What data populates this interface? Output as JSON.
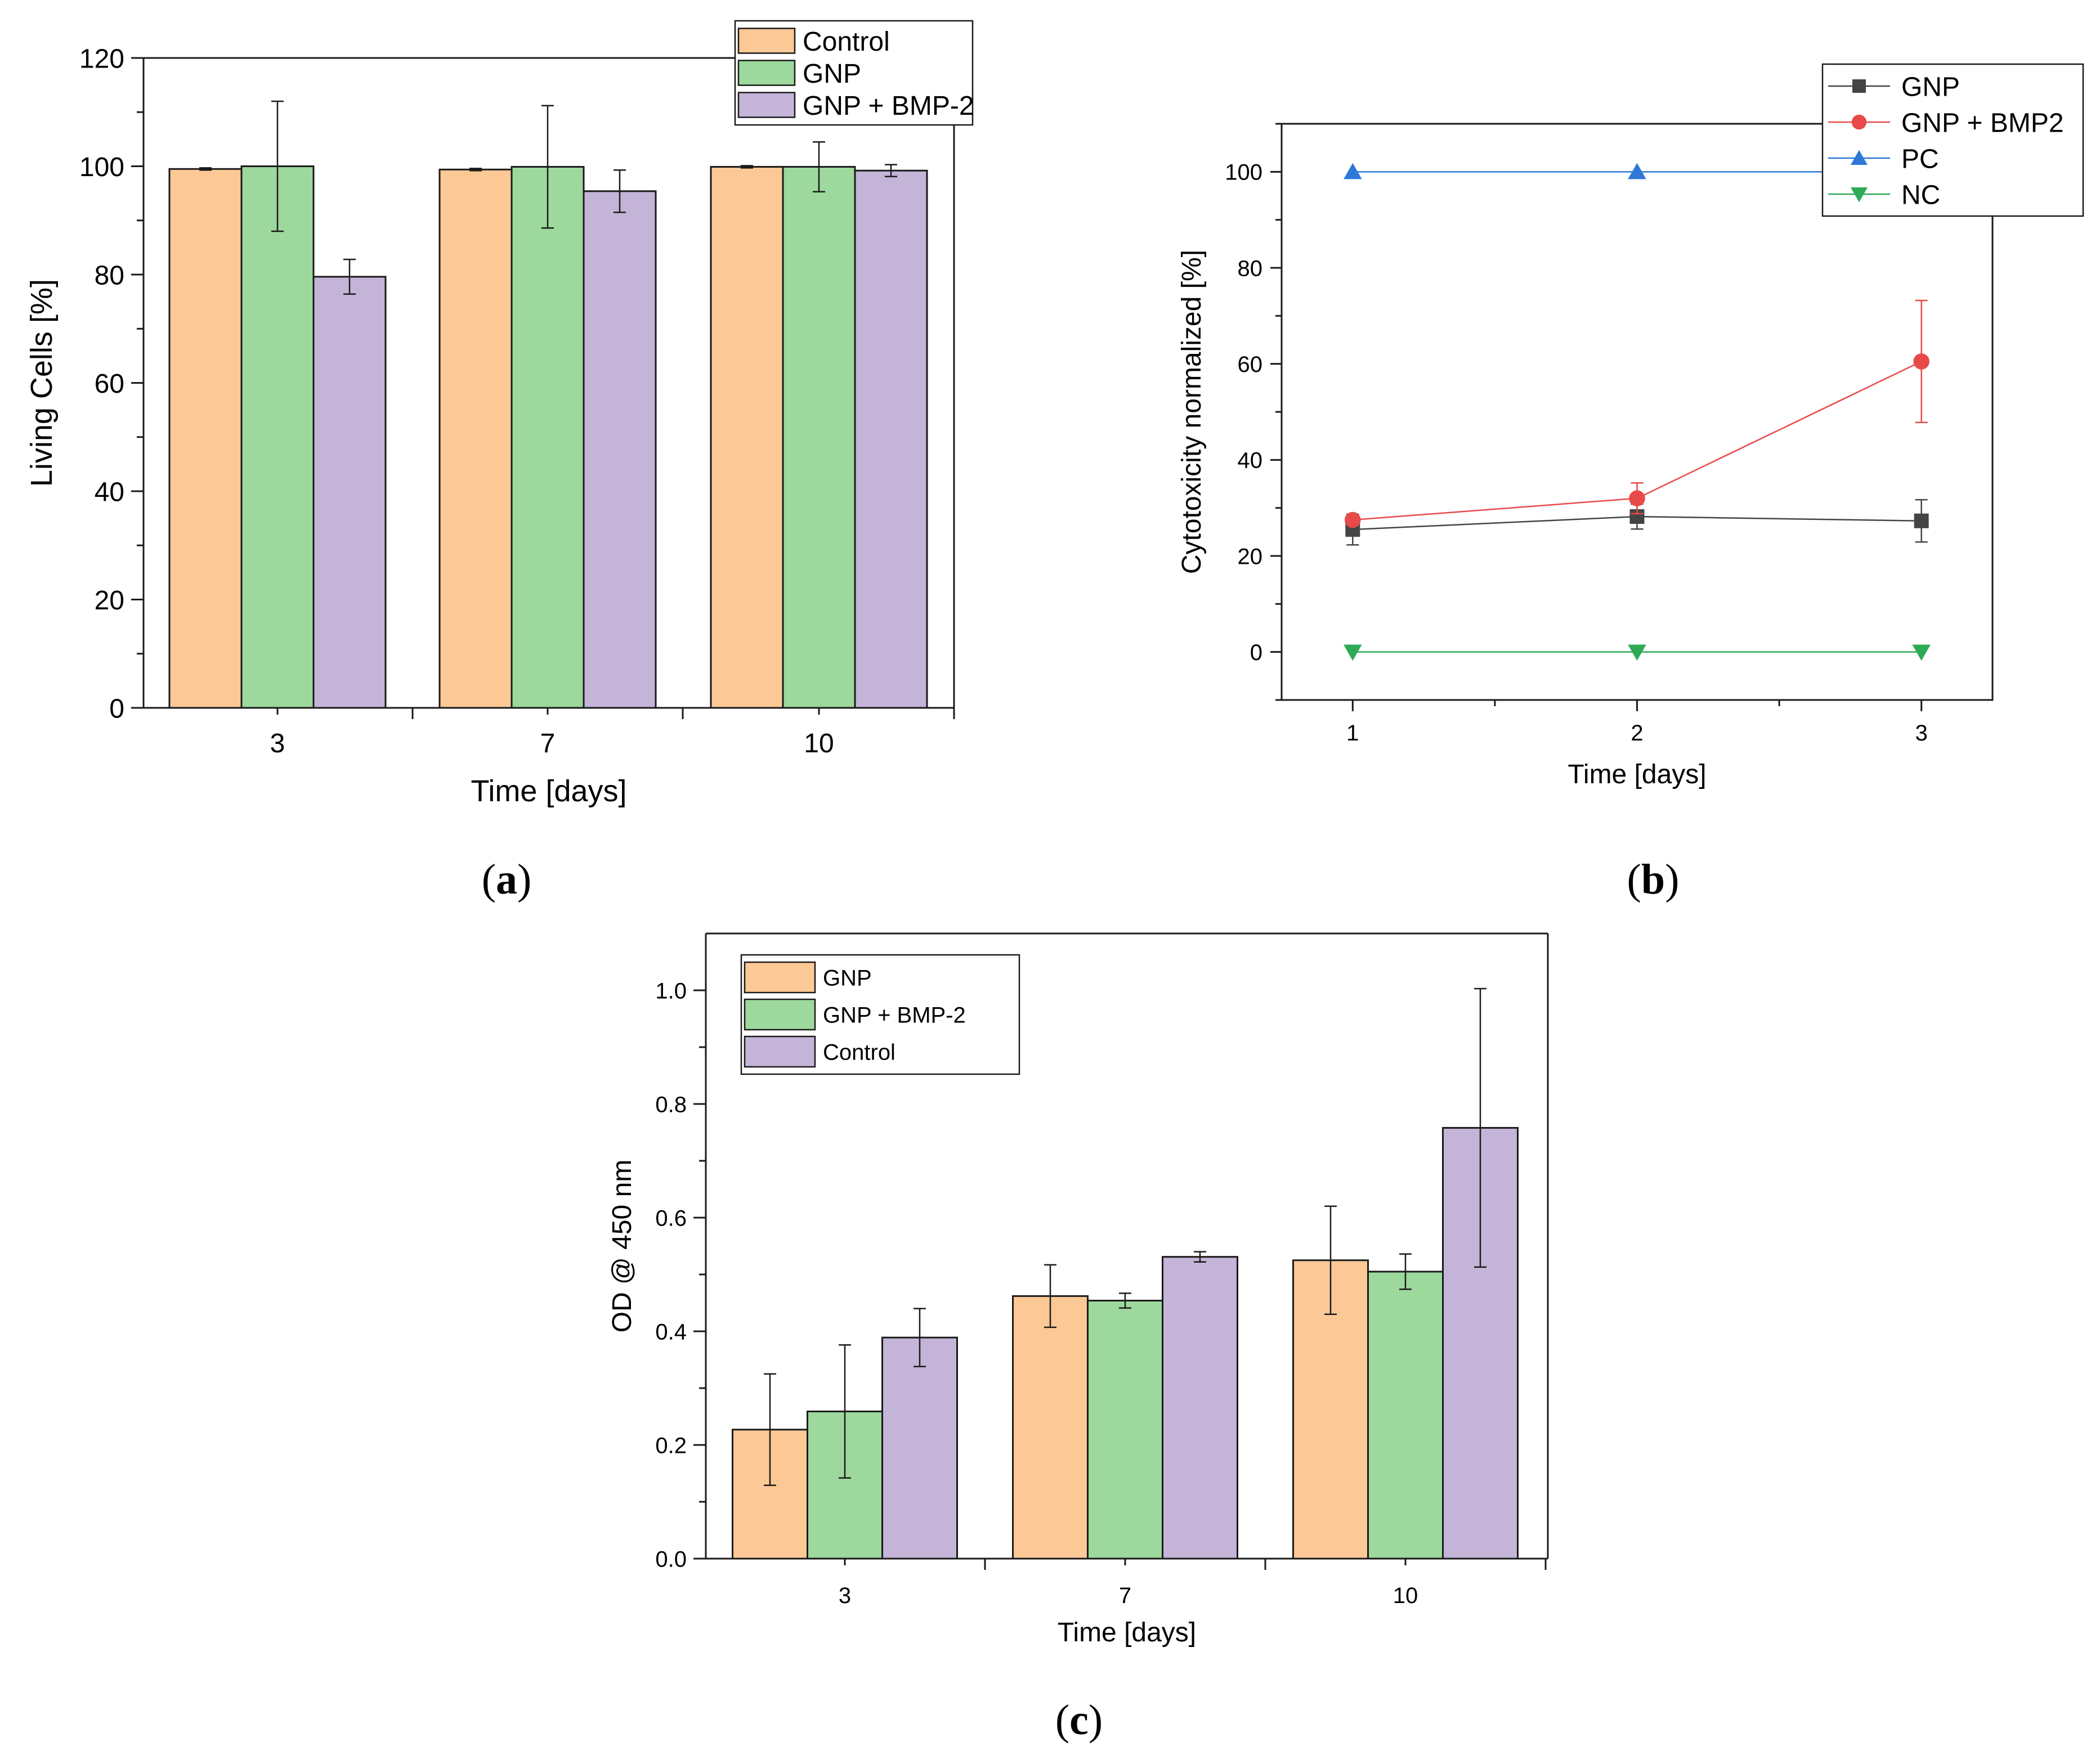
{
  "figure": {
    "panel_labels": [
      "a",
      "b",
      "c"
    ]
  },
  "chart_data": [
    {
      "id": "a",
      "type": "bar",
      "title": "",
      "xlabel": "Time [days]",
      "ylabel": "Living Cells [%]",
      "ylim": [
        0,
        120
      ],
      "yticks": [
        "0",
        "20",
        "40",
        "60",
        "80",
        "100",
        "120"
      ],
      "categories": [
        "3",
        "7",
        "10"
      ],
      "legend_position": "top-right",
      "series": [
        {
          "name": "Control",
          "color": "#FCC896",
          "values": [
            99.5,
            99.4,
            99.9
          ],
          "errors": [
            0.2,
            0.2,
            0.2
          ]
        },
        {
          "name": "GNP",
          "color": "#9DD89D",
          "values": [
            100.0,
            99.9,
            99.9
          ],
          "errors": [
            12.0,
            11.3,
            4.6
          ]
        },
        {
          "name": "GNP + BMP-2",
          "color": "#C3B4D8",
          "values": [
            79.6,
            95.4,
            99.2
          ],
          "errors": [
            3.2,
            3.9,
            1.1
          ]
        }
      ]
    },
    {
      "id": "b",
      "type": "line",
      "title": "",
      "xlabel": "Time [days]",
      "ylabel": "Cytotoxicity normalized [%]",
      "xlim": [
        0.75,
        3.25
      ],
      "ylim": [
        -10,
        110
      ],
      "xticks": [
        "1",
        "2",
        "3"
      ],
      "yticks": [
        "0",
        "20",
        "40",
        "60",
        "80",
        "100"
      ],
      "x": [
        1,
        2,
        3
      ],
      "legend_position": "top-right",
      "series": [
        {
          "name": "GNP",
          "color": "#444444",
          "marker": "square",
          "values": [
            25.5,
            28.2,
            27.3
          ],
          "errors": [
            3.2,
            2.6,
            4.4
          ]
        },
        {
          "name": "GNP + BMP2",
          "color": "#E84A4A",
          "marker": "circle",
          "values": [
            27.5,
            32.0,
            60.5
          ],
          "errors": [
            0.8,
            3.2,
            12.7
          ]
        },
        {
          "name": "PC",
          "color": "#2E78D8",
          "marker": "triangle-up",
          "values": [
            100,
            100,
            100
          ],
          "errors": [
            0,
            0,
            0
          ]
        },
        {
          "name": "NC",
          "color": "#2DAA55",
          "marker": "triangle-down",
          "values": [
            0,
            0,
            0
          ],
          "errors": [
            0,
            0,
            0
          ]
        }
      ]
    },
    {
      "id": "c",
      "type": "bar",
      "title": "",
      "xlabel": "Time [days]",
      "ylabel": "OD @ 450 nm",
      "ylim": [
        0,
        1.1
      ],
      "yticks": [
        "0.0",
        "0.2",
        "0.4",
        "0.6",
        "0.8",
        "1.0"
      ],
      "categories": [
        "3",
        "7",
        "10"
      ],
      "legend_position": "top-left",
      "series": [
        {
          "name": "GNP",
          "color": "#FCC896",
          "values": [
            0.227,
            0.462,
            0.525
          ],
          "errors": [
            0.098,
            0.055,
            0.095
          ]
        },
        {
          "name": "GNP + BMP-2",
          "color": "#9DD89D",
          "values": [
            0.259,
            0.454,
            0.505
          ],
          "errors": [
            0.117,
            0.013,
            0.031
          ]
        },
        {
          "name": "Control",
          "color": "#C3B4D8",
          "values": [
            0.389,
            0.531,
            0.758
          ],
          "errors": [
            0.051,
            0.009,
            0.245
          ]
        }
      ]
    }
  ]
}
